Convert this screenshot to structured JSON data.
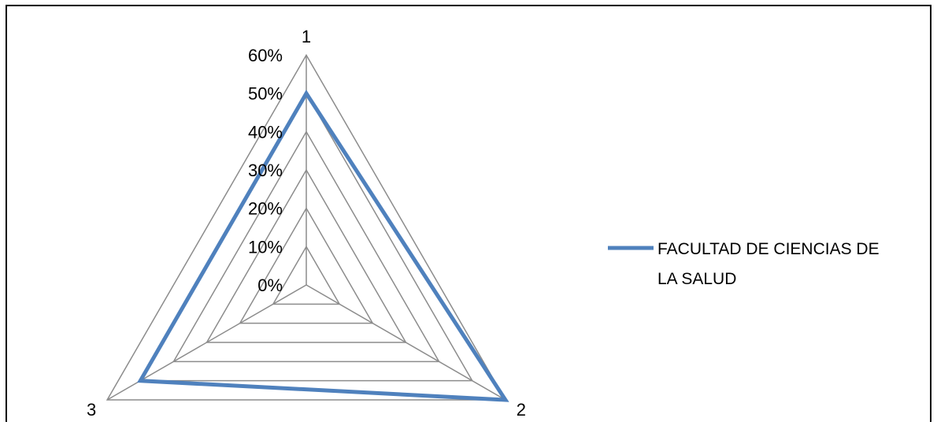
{
  "chart_data": {
    "type": "radar",
    "categories": [
      "1",
      "2",
      "3"
    ],
    "rlim": [
      0,
      0.6
    ],
    "ticks": [
      {
        "value": 0,
        "label": "0%"
      },
      {
        "value": 0.1,
        "label": "10%"
      },
      {
        "value": 0.2,
        "label": "20%"
      },
      {
        "value": 0.3,
        "label": "30%"
      },
      {
        "value": 0.4,
        "label": "40%"
      },
      {
        "value": 0.5,
        "label": "50%"
      },
      {
        "value": 0.6,
        "label": "60%"
      }
    ],
    "series": [
      {
        "name": "FACULTAD DE CIENCIAS DE LA SALUD",
        "values": [
          0.5,
          0.6,
          0.5
        ],
        "color": "#4F81BD"
      }
    ],
    "legend": {
      "position": "right",
      "lines": [
        "FACULTAD DE CIENCIAS DE",
        "LA SALUD"
      ]
    },
    "grid": true,
    "grid_color": "#8C8C8C",
    "axis_color": "#8C8C8C"
  }
}
